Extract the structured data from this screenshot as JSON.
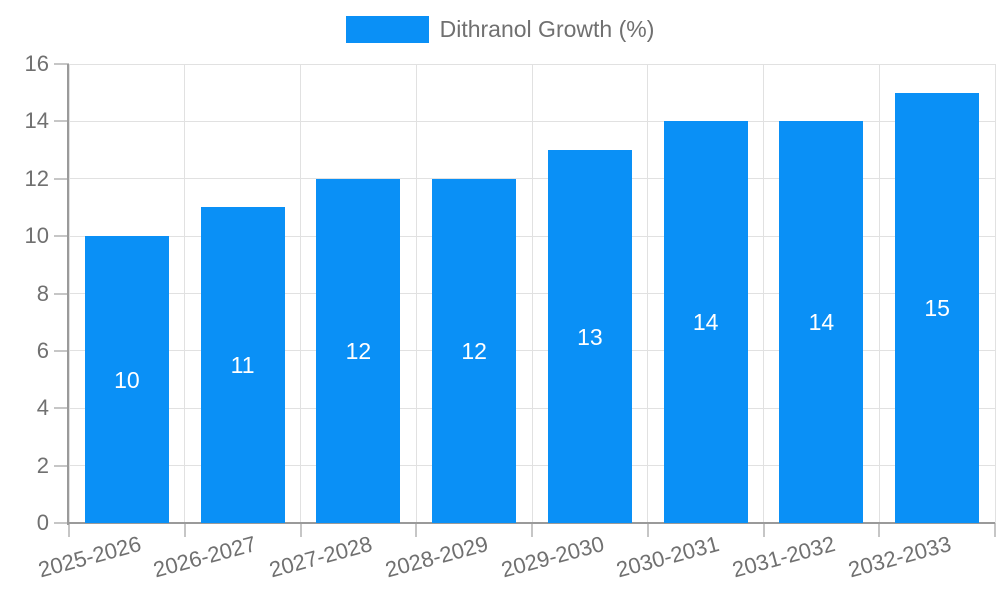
{
  "chart_data": {
    "type": "bar",
    "title": "",
    "legend": {
      "label": "Dithranol Growth (%)",
      "position": "top"
    },
    "categories": [
      "2025-2026",
      "2026-2027",
      "2027-2028",
      "2028-2029",
      "2029-2030",
      "2030-2031",
      "2031-2032",
      "2032-2033"
    ],
    "series": [
      {
        "name": "Dithranol Growth (%)",
        "values": [
          10,
          11,
          12,
          12,
          13,
          14,
          14,
          15
        ]
      }
    ],
    "bar_labels": [
      "10",
      "11",
      "12",
      "12",
      "13",
      "14",
      "14",
      "15"
    ],
    "xlabel": "",
    "ylabel": "",
    "ylim": [
      0,
      16
    ],
    "yticks": [
      0,
      2,
      4,
      6,
      8,
      10,
      12,
      14,
      16
    ],
    "grid": true,
    "colors": {
      "bar": "#0a90f6",
      "bar_label": "#ffffff",
      "axis_text": "#707070",
      "grid_line": "#e1e1e1",
      "tick_mark": "#c6c6c6",
      "axis_line": "#9a9a9a",
      "background": "#ffffff"
    }
  }
}
